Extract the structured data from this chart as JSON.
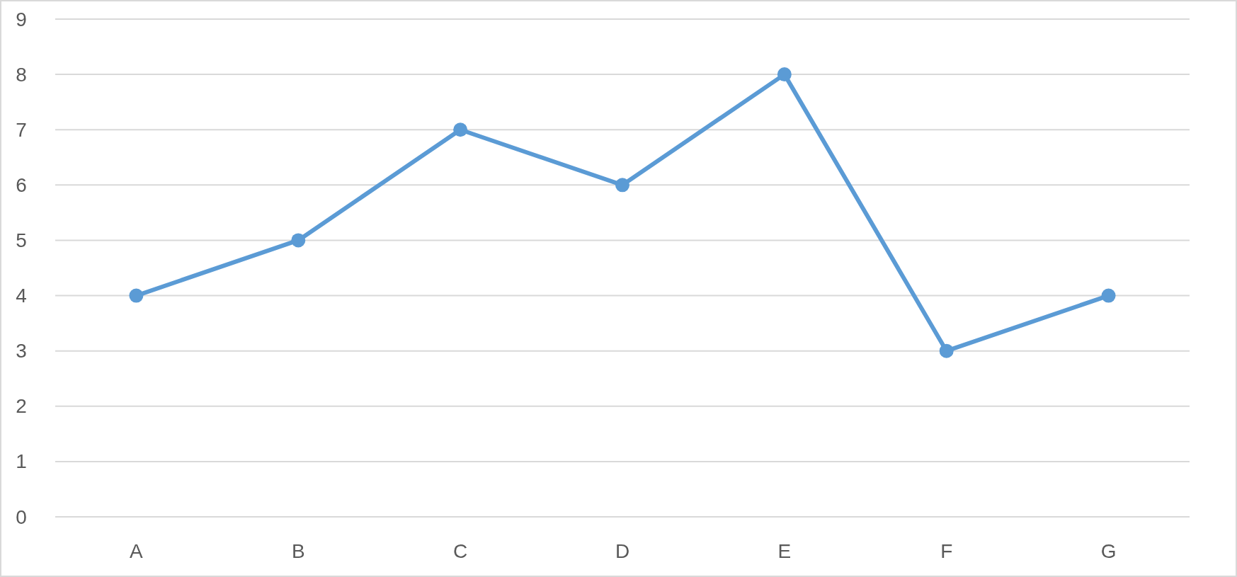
{
  "chart_data": {
    "type": "line",
    "categories": [
      "A",
      "B",
      "C",
      "D",
      "E",
      "F",
      "G"
    ],
    "series": [
      {
        "color": "#5b9bd5",
        "values": [
          4,
          5,
          7,
          6,
          8,
          3,
          4
        ]
      }
    ],
    "ylim": [
      0,
      9
    ],
    "yticks": [
      0,
      1,
      2,
      3,
      4,
      5,
      6,
      7,
      8,
      9
    ],
    "grid": "y",
    "marker": "circle"
  }
}
